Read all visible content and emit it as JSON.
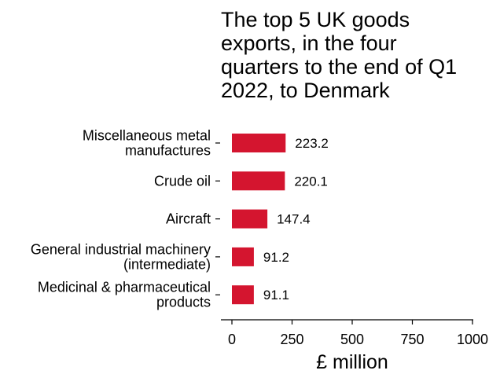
{
  "chart_data": {
    "type": "bar",
    "orientation": "horizontal",
    "title": "The top 5 UK goods exports, in the four quarters to the end of Q1 2022, to Denmark",
    "categories": [
      [
        "Miscellaneous metal",
        "manufactures"
      ],
      [
        "Crude oil"
      ],
      [
        "Aircraft"
      ],
      [
        "General industrial machinery",
        "(intermediate)"
      ],
      [
        "Medicinal & pharmaceutical",
        "products"
      ]
    ],
    "values": [
      223.2,
      220.1,
      147.4,
      91.2,
      91.1
    ],
    "data_labels": [
      "223.2",
      "220.1",
      "147.4",
      "91.2",
      "91.1"
    ],
    "xlabel": "£ million",
    "xlim": [
      0,
      1000
    ],
    "xticks": [
      "0",
      "250",
      "500",
      "750",
      "1000"
    ],
    "grid": false,
    "bar_color": "#d4152f"
  }
}
